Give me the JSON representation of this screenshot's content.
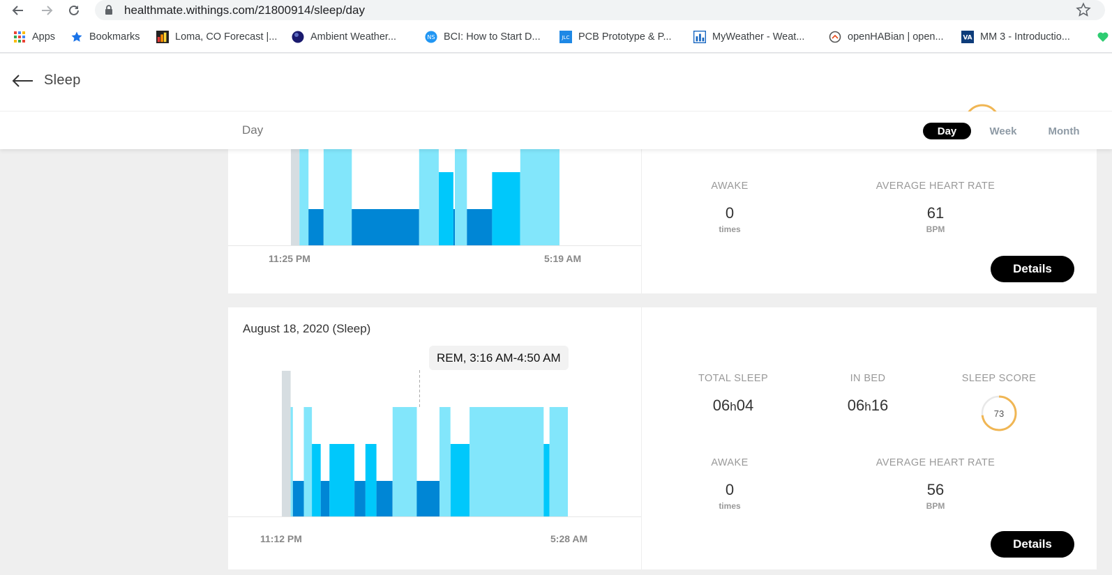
{
  "browser": {
    "url": "healthmate.withings.com/21800914/sleep/day",
    "bookmarks": [
      {
        "label": "Apps",
        "icon": "apps-grid-icon"
      },
      {
        "label": "Bookmarks",
        "icon": "star-icon"
      },
      {
        "label": "Loma, CO Forecast |...",
        "icon": "wu-logo-icon"
      },
      {
        "label": "Ambient Weather...",
        "icon": "globe-icon"
      },
      {
        "label": "BCI: How to Start D...",
        "icon": "ns-logo-icon"
      },
      {
        "label": "PCB Prototype & P...",
        "icon": "jlc-logo-icon"
      },
      {
        "label": "MyWeather - Weat...",
        "icon": "bars-logo-icon"
      },
      {
        "label": "openHABian | open...",
        "icon": "openhab-icon"
      },
      {
        "label": "MM 3 - Introductio...",
        "icon": "va-logo-icon"
      }
    ]
  },
  "header": {
    "title": "Sleep"
  },
  "period": {
    "label": "Day",
    "options": [
      "Day",
      "Week",
      "Month"
    ],
    "selected": "Day"
  },
  "colors": {
    "deep": "#0086d5",
    "light": "#00c8fb",
    "rem": "#82e6fb",
    "awake": "#d6dde1",
    "score_ring": "#f0b654",
    "score_track": "#e8e8e8"
  },
  "cards": [
    {
      "date": "",
      "start_label": "11:25 PM",
      "end_label": "5:19 AM",
      "metrics": {
        "awake_label": "AWAKE",
        "awake_value": "0",
        "awake_unit": "times",
        "hr_label": "AVERAGE HEART RATE",
        "hr_value": "61",
        "hr_unit": "BPM"
      },
      "details_label": "Details"
    },
    {
      "date": "August 18, 2020 (Sleep)",
      "tooltip": "REM, 3:16 AM-4:50 AM",
      "start_label": "11:12 PM",
      "end_label": "5:28 AM",
      "metrics": {
        "total_sleep_label": "TOTAL SLEEP",
        "total_sleep_h": "06",
        "total_sleep_m": "04",
        "in_bed_label": "IN BED",
        "in_bed_h": "06",
        "in_bed_m": "16",
        "sleep_score_label": "SLEEP SCORE",
        "sleep_score": "73",
        "awake_label": "AWAKE",
        "awake_value": "0",
        "awake_unit": "times",
        "hr_label": "AVERAGE HEART RATE",
        "hr_value": "56",
        "hr_unit": "BPM"
      },
      "details_label": "Details"
    }
  ],
  "chart_data": [
    {
      "type": "bar",
      "title": "",
      "x_start": "11:25 PM",
      "x_end": "5:19 AM",
      "stages": [
        "awake",
        "rem",
        "light",
        "deep"
      ],
      "segments": [
        {
          "stage": "awake",
          "start": 0.0,
          "end": 0.0318
        },
        {
          "stage": "rem",
          "start": 0.0318,
          "end": 0.0655
        },
        {
          "stage": "deep",
          "start": 0.0655,
          "end": 0.1217
        },
        {
          "stage": "rem",
          "start": 0.1217,
          "end": 0.2266
        },
        {
          "stage": "deep",
          "start": 0.2266,
          "end": 0.4775
        },
        {
          "stage": "rem",
          "start": 0.4775,
          "end": 0.5506
        },
        {
          "stage": "light",
          "start": 0.5506,
          "end": 0.6049
        },
        {
          "stage": "deep",
          "start": 0.6049,
          "end": 0.6105
        },
        {
          "stage": "rem",
          "start": 0.6105,
          "end": 0.6554
        },
        {
          "stage": "deep",
          "start": 0.6554,
          "end": 0.7491
        },
        {
          "stage": "light",
          "start": 0.7491,
          "end": 0.8539
        },
        {
          "stage": "rem",
          "start": 0.8539,
          "end": 1.0
        }
      ]
    },
    {
      "type": "bar",
      "title": "",
      "x_start": "11:12 PM",
      "x_end": "5:28 AM",
      "stages": [
        "awake",
        "rem",
        "light",
        "deep"
      ],
      "segments": [
        {
          "stage": "awake",
          "start": 0.0,
          "end": 0.0308
        },
        {
          "stage": "rem",
          "start": 0.0308,
          "end": 0.0385
        },
        {
          "stage": "deep",
          "start": 0.0385,
          "end": 0.0769
        },
        {
          "stage": "rem",
          "start": 0.0769,
          "end": 0.1051
        },
        {
          "stage": "light",
          "start": 0.1051,
          "end": 0.1359
        },
        {
          "stage": "deep",
          "start": 0.1359,
          "end": 0.1667
        },
        {
          "stage": "light",
          "start": 0.1667,
          "end": 0.2538
        },
        {
          "stage": "deep",
          "start": 0.2538,
          "end": 0.2923
        },
        {
          "stage": "light",
          "start": 0.2923,
          "end": 0.3308
        },
        {
          "stage": "deep",
          "start": 0.3308,
          "end": 0.3872
        },
        {
          "stage": "rem",
          "start": 0.3872,
          "end": 0.4718
        },
        {
          "stage": "deep",
          "start": 0.4718,
          "end": 0.5513
        },
        {
          "stage": "rem",
          "start": 0.5513,
          "end": 0.5897
        },
        {
          "stage": "light",
          "start": 0.5897,
          "end": 0.6564
        },
        {
          "stage": "rem",
          "start": 0.6564,
          "end": 0.9154
        },
        {
          "stage": "light",
          "start": 0.9154,
          "end": 0.9359
        },
        {
          "stage": "rem",
          "start": 0.9359,
          "end": 1.0
        }
      ]
    }
  ]
}
